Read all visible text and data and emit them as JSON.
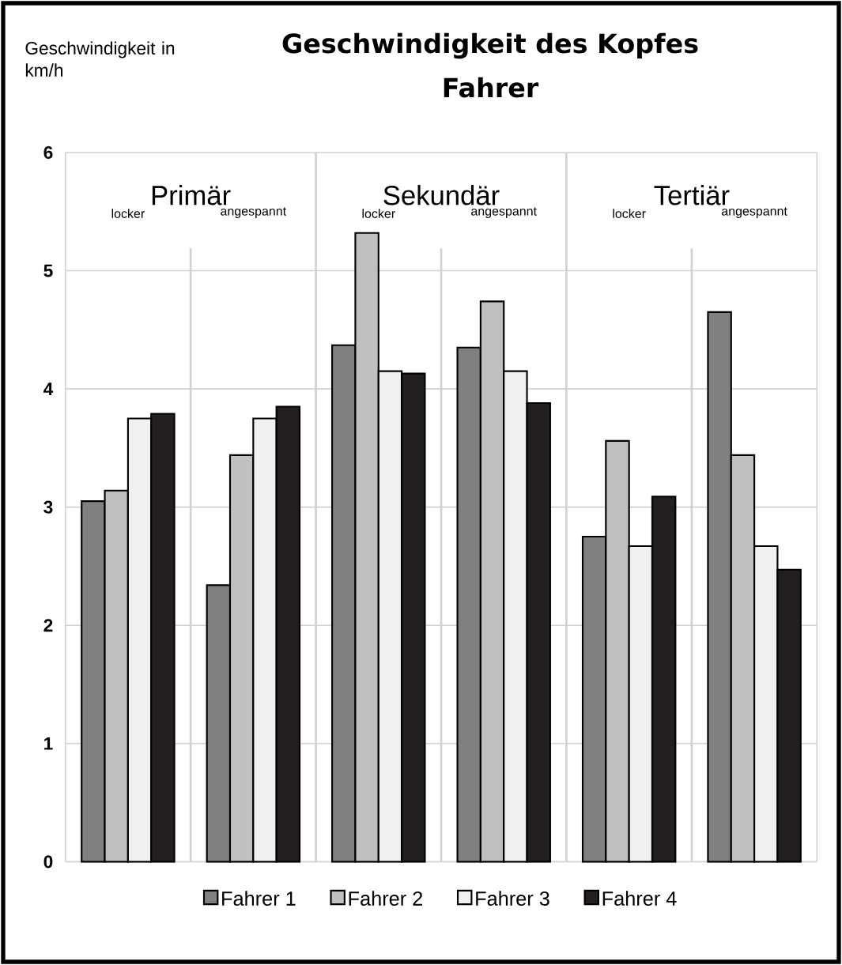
{
  "chart_data": {
    "type": "bar",
    "title": "Geschwindigkeit des Kopfes",
    "subtitle": "Fahrer",
    "ylabel": "Geschwindigkeit in km/h",
    "categories": [
      "locker",
      "angespannt",
      "locker",
      "angespannt",
      "locker",
      "angespannt"
    ],
    "annotations": [
      "Primär",
      "Sekundär",
      "Tertiär"
    ],
    "series": [
      {
        "name": "Fahrer 1",
        "color": "#808080",
        "values": [
          3.05,
          2.34,
          4.37,
          4.35,
          2.75,
          4.65
        ]
      },
      {
        "name": "Fahrer 2",
        "color": "#c0c0c0",
        "values": [
          3.14,
          3.44,
          5.32,
          4.74,
          3.56,
          3.44
        ]
      },
      {
        "name": "Fahrer 3",
        "color": "#f0f0f0",
        "values": [
          3.75,
          3.75,
          4.15,
          4.15,
          2.67,
          2.67
        ]
      },
      {
        "name": "Fahrer 4",
        "color": "#231f20",
        "values": [
          3.79,
          3.85,
          4.13,
          3.88,
          3.09,
          2.47
        ]
      }
    ],
    "ylim": [
      0,
      6
    ],
    "yticks": [
      0,
      1,
      2,
      3,
      4,
      5,
      6
    ],
    "grid": "y",
    "legend": "bottom"
  }
}
